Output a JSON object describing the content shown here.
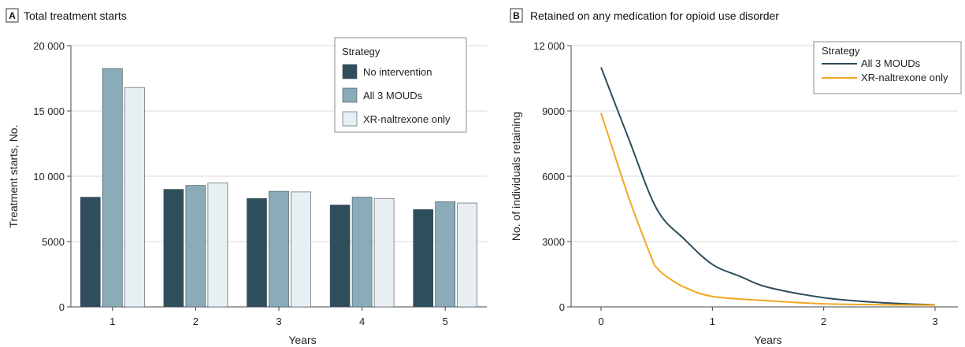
{
  "colors": {
    "no_intervention": "#2e4e5b",
    "all3": "#8aabb8",
    "xr": "#e8eff3",
    "line_all3": "#2e4e5b",
    "line_xr": "#f5a623"
  },
  "panel_a": {
    "letter": "A",
    "title": "Total treatment starts",
    "legend_title": "Strategy"
  },
  "panel_b": {
    "letter": "B",
    "title": "Retained on any medication for opioid use disorder",
    "legend_title": "Strategy"
  },
  "chart_data": [
    {
      "type": "bar",
      "title": "Total treatment starts",
      "xlabel": "Years",
      "ylabel": "Treatment starts, No.",
      "ylim": [
        0,
        20000
      ],
      "yticks": [
        0,
        5000,
        10000,
        15000,
        20000
      ],
      "ytick_labels": [
        "0",
        "5000",
        "10 000",
        "15 000",
        "20 000"
      ],
      "categories": [
        "1",
        "2",
        "3",
        "4",
        "5"
      ],
      "series": [
        {
          "name": "No intervention",
          "values": [
            8400,
            9000,
            8300,
            7800,
            7450
          ]
        },
        {
          "name": "All 3 MOUDs",
          "values": [
            18250,
            9300,
            8850,
            8400,
            8050
          ]
        },
        {
          "name": "XR-naltrexone only",
          "values": [
            16800,
            9500,
            8800,
            8300,
            7950
          ]
        }
      ],
      "grid": true,
      "legend_position": "top-right"
    },
    {
      "type": "line",
      "title": "Retained on any medication for opioid use disorder",
      "xlabel": "Years",
      "ylabel": "No. of individuals retaining",
      "xlim": [
        0,
        3
      ],
      "xticks": [
        0,
        1,
        2,
        3
      ],
      "ylim": [
        0,
        12000
      ],
      "yticks": [
        0,
        3000,
        6000,
        9000,
        12000
      ],
      "ytick_labels": [
        "0",
        "3000",
        "6000",
        "9000",
        "12 000"
      ],
      "series": [
        {
          "name": "All 3 MOUDs",
          "x": [
            0,
            0.25,
            0.5,
            0.75,
            1,
            1.25,
            1.5,
            2,
            2.5,
            3
          ],
          "y": [
            11000,
            7700,
            4500,
            3100,
            1950,
            1400,
            900,
            420,
            200,
            90
          ]
        },
        {
          "name": "XR-naltrexone only",
          "x": [
            0,
            0.25,
            0.45,
            0.5,
            0.6,
            0.75,
            1,
            1.5,
            2,
            2.5,
            3
          ],
          "y": [
            8900,
            5000,
            2300,
            1800,
            1350,
            900,
            480,
            280,
            140,
            100,
            80
          ]
        }
      ],
      "grid": true,
      "legend_position": "top-right"
    }
  ]
}
